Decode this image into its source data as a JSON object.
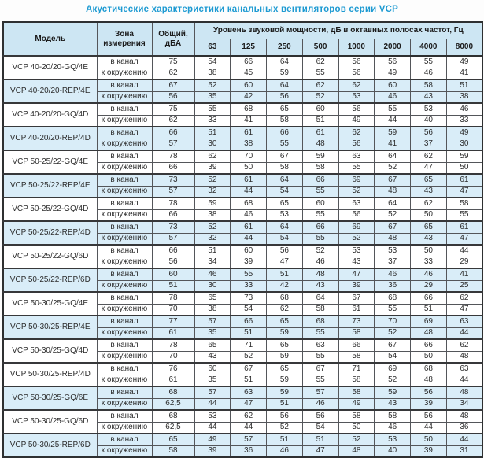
{
  "page_title": "Акустические характеристики канальных вентиляторов  серии VCP",
  "colors": {
    "title_text": "#1d9ad2",
    "header_bg": "#cde6f3",
    "highlight_row_bg": "#d9edf8",
    "border_dark": "#2e3031",
    "border_light": "#54565a",
    "body_text": "#2d2d2d"
  },
  "table": {
    "headers": {
      "model": "Модель",
      "zone": "Зона измерения",
      "total": "Общий, дБА",
      "spl_group": "Уровень звуковой мощности, дБ в октавных полосах частот, Гц",
      "frequencies": [
        "63",
        "125",
        "250",
        "500",
        "1000",
        "2000",
        "4000",
        "8000"
      ]
    },
    "zone_labels": {
      "in_duct": "в канал",
      "to_environment": "к окружению"
    },
    "groups": [
      {
        "model": "VCP 40-20/20-GQ/4E",
        "highlighted": false,
        "in_duct": {
          "total": "75",
          "bands": [
            54,
            66,
            64,
            62,
            56,
            56,
            55,
            49
          ]
        },
        "to_environment": {
          "total": "62",
          "bands": [
            38,
            45,
            59,
            55,
            56,
            49,
            46,
            41
          ]
        }
      },
      {
        "model": "VCP 40-20/20-REP/4E",
        "highlighted": true,
        "in_duct": {
          "total": "67",
          "bands": [
            52,
            60,
            64,
            62,
            62,
            60,
            58,
            51
          ]
        },
        "to_environment": {
          "total": "56",
          "bands": [
            35,
            42,
            56,
            52,
            53,
            46,
            43,
            38
          ]
        }
      },
      {
        "model": "VCP 40-20/20-GQ/4D",
        "highlighted": false,
        "in_duct": {
          "total": "75",
          "bands": [
            55,
            68,
            65,
            60,
            56,
            55,
            53,
            46
          ]
        },
        "to_environment": {
          "total": "62",
          "bands": [
            33,
            41,
            58,
            51,
            49,
            44,
            40,
            33
          ]
        }
      },
      {
        "model": "VCP 40-20/20-REP/4D",
        "highlighted": true,
        "in_duct": {
          "total": "66",
          "bands": [
            51,
            61,
            66,
            61,
            62,
            59,
            56,
            49
          ]
        },
        "to_environment": {
          "total": "57",
          "bands": [
            30,
            38,
            55,
            48,
            56,
            41,
            37,
            30
          ]
        }
      },
      {
        "model": "VCP 50-25/22-GQ/4E",
        "highlighted": false,
        "in_duct": {
          "total": "78",
          "bands": [
            62,
            70,
            67,
            59,
            63,
            64,
            62,
            59
          ]
        },
        "to_environment": {
          "total": "66",
          "bands": [
            39,
            50,
            58,
            58,
            55,
            52,
            47,
            50
          ]
        }
      },
      {
        "model": "VCP 50-25/22-REP/4E",
        "highlighted": true,
        "in_duct": {
          "total": "73",
          "bands": [
            52,
            61,
            64,
            66,
            69,
            67,
            65,
            61
          ]
        },
        "to_environment": {
          "total": "57",
          "bands": [
            32,
            44,
            54,
            55,
            52,
            48,
            43,
            47
          ]
        }
      },
      {
        "model": "VCP 50-25/22-GQ/4D",
        "highlighted": false,
        "in_duct": {
          "total": "78",
          "bands": [
            59,
            68,
            65,
            60,
            63,
            64,
            62,
            58
          ]
        },
        "to_environment": {
          "total": "66",
          "bands": [
            38,
            46,
            53,
            55,
            56,
            52,
            50,
            55
          ]
        }
      },
      {
        "model": "VCP 50-25/22-REP/4D",
        "highlighted": true,
        "in_duct": {
          "total": "73",
          "bands": [
            52,
            61,
            64,
            66,
            69,
            67,
            65,
            61
          ]
        },
        "to_environment": {
          "total": "57",
          "bands": [
            32,
            44,
            54,
            55,
            52,
            48,
            43,
            47
          ]
        }
      },
      {
        "model": "VCP 50-25/22-GQ/6D",
        "highlighted": false,
        "in_duct": {
          "total": "66",
          "bands": [
            51,
            60,
            56,
            52,
            53,
            53,
            50,
            44
          ]
        },
        "to_environment": {
          "total": "56",
          "bands": [
            34,
            39,
            47,
            46,
            43,
            37,
            33,
            29
          ]
        }
      },
      {
        "model": "VCP 50-25/22-REP/6D",
        "highlighted": true,
        "in_duct": {
          "total": "60",
          "bands": [
            46,
            55,
            51,
            48,
            47,
            46,
            46,
            41
          ]
        },
        "to_environment": {
          "total": "51",
          "bands": [
            30,
            33,
            42,
            43,
            39,
            36,
            29,
            25
          ]
        }
      },
      {
        "model": "VCP 50-30/25-GQ/4E",
        "highlighted": false,
        "in_duct": {
          "total": "78",
          "bands": [
            65,
            73,
            68,
            64,
            67,
            68,
            66,
            62
          ]
        },
        "to_environment": {
          "total": "70",
          "bands": [
            38,
            54,
            62,
            58,
            61,
            55,
            51,
            47
          ]
        }
      },
      {
        "model": "VCP 50-30/25-REP/4E",
        "highlighted": true,
        "in_duct": {
          "total": "77",
          "bands": [
            57,
            66,
            65,
            68,
            73,
            70,
            69,
            63
          ]
        },
        "to_environment": {
          "total": "61",
          "bands": [
            35,
            51,
            59,
            55,
            58,
            52,
            48,
            44
          ]
        }
      },
      {
        "model": "VCP 50-30/25-GQ/4D",
        "highlighted": false,
        "in_duct": {
          "total": "78",
          "bands": [
            65,
            71,
            65,
            63,
            66,
            67,
            66,
            62
          ]
        },
        "to_environment": {
          "total": "70",
          "bands": [
            43,
            52,
            59,
            55,
            58,
            54,
            50,
            48
          ]
        }
      },
      {
        "model": "VCP 50-30/25-REP/4D",
        "highlighted": false,
        "in_duct": {
          "total": "76",
          "bands": [
            60,
            67,
            65,
            67,
            71,
            69,
            68,
            63
          ]
        },
        "to_environment": {
          "total": "61",
          "bands": [
            35,
            51,
            59,
            55,
            58,
            52,
            48,
            44
          ]
        }
      },
      {
        "model": "VCP 50-30/25-GQ/6E",
        "highlighted": true,
        "in_duct": {
          "total": "68",
          "bands": [
            57,
            63,
            59,
            57,
            58,
            59,
            56,
            48
          ]
        },
        "to_environment": {
          "total": "62,5",
          "bands": [
            44,
            47,
            51,
            46,
            49,
            43,
            39,
            34
          ]
        }
      },
      {
        "model": "VCP 50-30/25-GQ/6D",
        "highlighted": false,
        "in_duct": {
          "total": "68",
          "bands": [
            53,
            62,
            56,
            56,
            58,
            58,
            56,
            48
          ]
        },
        "to_environment": {
          "total": "62,5",
          "bands": [
            44,
            44,
            52,
            54,
            50,
            46,
            44,
            36
          ]
        }
      },
      {
        "model": "VCP 50-30/25-REP/6D",
        "highlighted": true,
        "in_duct": {
          "total": "65",
          "bands": [
            49,
            57,
            51,
            51,
            52,
            53,
            50,
            44
          ]
        },
        "to_environment": {
          "total": "58",
          "bands": [
            39,
            36,
            46,
            47,
            48,
            40,
            39,
            31
          ]
        }
      }
    ]
  }
}
